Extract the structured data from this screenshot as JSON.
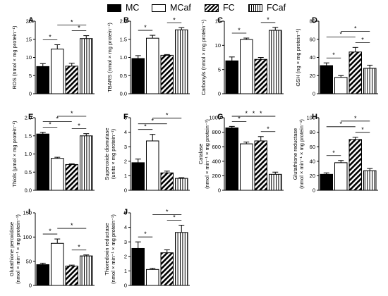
{
  "legend": [
    {
      "name": "MC",
      "pattern": "solid"
    },
    {
      "name": "MCaf",
      "pattern": "empty"
    },
    {
      "name": "FC",
      "pattern": "diagonal"
    },
    {
      "name": "FCaf",
      "pattern": "vertical"
    }
  ],
  "chart_data": [
    {
      "type": "bar",
      "letter": "A",
      "categories": [
        "MC",
        "MCaf",
        "FC",
        "FCaf"
      ],
      "ylabel": "ROS (nmol × mg protein⁻¹)",
      "ylim": [
        0,
        20
      ],
      "yticks": [
        0,
        5,
        10,
        15,
        20
      ],
      "values": [
        7.5,
        12.3,
        7.6,
        15.2
      ],
      "errors": [
        0.8,
        1.2,
        0.8,
        0.8
      ],
      "brackets": [
        {
          "a": 0,
          "b": 1,
          "label": "*"
        },
        {
          "a": 1,
          "b": 3,
          "label": "*"
        },
        {
          "a": 2,
          "b": 3,
          "label": "*"
        }
      ]
    },
    {
      "type": "bar",
      "letter": "B",
      "categories": [
        "MC",
        "MCaf",
        "FC",
        "FCaf"
      ],
      "ylabel": "TBARS (nmol × mg protein⁻¹)",
      "ylim": [
        0,
        2.0
      ],
      "yticks": [
        0.0,
        0.5,
        1.0,
        1.5,
        2.0
      ],
      "values": [
        0.97,
        1.53,
        1.06,
        1.76
      ],
      "errors": [
        0.08,
        0.08,
        0.02,
        0.06
      ],
      "brackets": [
        {
          "a": 0,
          "b": 1,
          "label": "*"
        },
        {
          "a": 2,
          "b": 3,
          "label": "*"
        }
      ]
    },
    {
      "type": "bar",
      "letter": "C",
      "categories": [
        "MC",
        "MCaf",
        "FC",
        "FCaf"
      ],
      "ylabel": "Carbonyls (nmol × mg protein⁻¹)",
      "ylim": [
        0,
        15
      ],
      "yticks": [
        0,
        5,
        10,
        15
      ],
      "values": [
        6.8,
        11.2,
        7.1,
        13.1
      ],
      "errors": [
        0.8,
        0.3,
        0.4,
        0.6
      ],
      "brackets": [
        {
          "a": 0,
          "b": 1,
          "label": "*"
        },
        {
          "a": 2,
          "b": 3,
          "label": "*"
        }
      ]
    },
    {
      "type": "bar",
      "letter": "D",
      "categories": [
        "MC",
        "MCaf",
        "FC",
        "FCaf"
      ],
      "ylabel": "GSH (ng × mg protein⁻¹)",
      "ylim": [
        0,
        80
      ],
      "yticks": [
        0,
        20,
        40,
        60,
        80
      ],
      "values": [
        31,
        18,
        46,
        28
      ],
      "errors": [
        3,
        2,
        5,
        3.5
      ],
      "brackets": [
        {
          "a": 0,
          "b": 1,
          "label": "*"
        },
        {
          "a": 0,
          "b": 2,
          "label": "*"
        },
        {
          "a": 1,
          "b": 3,
          "label": "*"
        },
        {
          "a": 2,
          "b": 3,
          "label": "*"
        }
      ]
    },
    {
      "type": "bar",
      "letter": "E",
      "categories": [
        "MC",
        "MCaf",
        "FC",
        "FCaf"
      ],
      "ylabel": "Thiols (μmol × mg protein⁻¹)",
      "ylim": [
        0,
        2.0
      ],
      "yticks": [
        0.0,
        0.5,
        1.0,
        1.5,
        2.0
      ],
      "values": [
        1.55,
        0.88,
        0.71,
        1.5
      ],
      "errors": [
        0.05,
        0.03,
        0.02,
        0.06
      ],
      "brackets": [
        {
          "a": 0,
          "b": 1,
          "label": "*"
        },
        {
          "a": 0,
          "b": 2,
          "label": "*"
        },
        {
          "a": 1,
          "b": 3,
          "label": "*"
        },
        {
          "a": 2,
          "b": 3,
          "label": "*"
        }
      ]
    },
    {
      "type": "bar",
      "letter": "F",
      "categories": [
        "MC",
        "MCaf",
        "FC",
        "FCaf"
      ],
      "ylabel": "Superoxide dismutase (units × mg protein⁻¹)",
      "ylim": [
        0,
        5
      ],
      "yticks": [
        0,
        1,
        2,
        3,
        4,
        5
      ],
      "values": [
        1.9,
        3.4,
        1.2,
        0.82
      ],
      "errors": [
        0.25,
        0.45,
        0.12,
        0.05
      ],
      "brackets": [
        {
          "a": 0,
          "b": 1,
          "label": "*"
        },
        {
          "a": 0,
          "b": 2,
          "label": "*"
        },
        {
          "a": 1,
          "b": 3,
          "label": "*"
        }
      ]
    },
    {
      "type": "bar",
      "letter": "G",
      "categories": [
        "MC",
        "MCaf",
        "FC",
        "FCaf"
      ],
      "ylabel": "Catalase (nmol × min⁻¹ × mg protein⁻¹)",
      "ylim": [
        0,
        1000
      ],
      "yticks": [
        0,
        200,
        400,
        600,
        800,
        1000
      ],
      "values": [
        860,
        640,
        680,
        220
      ],
      "errors": [
        20,
        25,
        60,
        30
      ],
      "brackets": [
        {
          "a": 0,
          "b": 1,
          "label": "*"
        },
        {
          "a": 0,
          "b": 2,
          "label": "*"
        },
        {
          "a": 0,
          "b": 3,
          "label": "*"
        },
        {
          "a": 1,
          "b": 3,
          "label": "*"
        },
        {
          "a": 2,
          "b": 3,
          "label": "*"
        }
      ]
    },
    {
      "type": "bar",
      "letter": "H",
      "categories": [
        "MC",
        "MCaf",
        "FC",
        "FCaf"
      ],
      "ylabel": "Glutathione reductase (nmol × min⁻¹ × mg protein⁻¹)",
      "ylim": [
        0,
        100
      ],
      "yticks": [
        0,
        20,
        40,
        60,
        80,
        100
      ],
      "values": [
        22,
        38,
        70,
        27
      ],
      "errors": [
        2,
        3,
        3,
        3
      ],
      "brackets": [
        {
          "a": 0,
          "b": 1,
          "label": "*"
        },
        {
          "a": 0,
          "b": 2,
          "label": "*"
        },
        {
          "a": 1,
          "b": 3,
          "label": "*"
        },
        {
          "a": 2,
          "b": 3,
          "label": "*"
        }
      ]
    },
    {
      "type": "bar",
      "letter": "I",
      "categories": [
        "MC",
        "MCaf",
        "FC",
        "FCaf"
      ],
      "ylabel": "Glutathione peroxidase (nmol × min⁻¹ × mg protein⁻¹)",
      "ylim": [
        0,
        150
      ],
      "yticks": [
        0,
        50,
        100,
        150
      ],
      "values": [
        43,
        87,
        40,
        61
      ],
      "errors": [
        3,
        9,
        2,
        2
      ],
      "brackets": [
        {
          "a": 0,
          "b": 1,
          "label": "*"
        },
        {
          "a": 1,
          "b": 3,
          "label": "*"
        },
        {
          "a": 2,
          "b": 3,
          "label": "*"
        }
      ]
    },
    {
      "type": "bar",
      "letter": "J",
      "categories": [
        "MC",
        "MCaf",
        "FC",
        "FCaf"
      ],
      "ylabel": "Thioredoxin reductase (nmol × min⁻¹ × mg protein⁻¹)",
      "ylim": [
        0,
        5
      ],
      "yticks": [
        0,
        1,
        2,
        3,
        4,
        5
      ],
      "values": [
        2.55,
        1.1,
        2.25,
        3.65
      ],
      "errors": [
        0.45,
        0.08,
        0.2,
        0.5
      ],
      "brackets": [
        {
          "a": 0,
          "b": 1,
          "label": "*"
        },
        {
          "a": 1,
          "b": 3,
          "label": "*"
        },
        {
          "a": 2,
          "b": 3,
          "label": "*"
        }
      ]
    }
  ]
}
